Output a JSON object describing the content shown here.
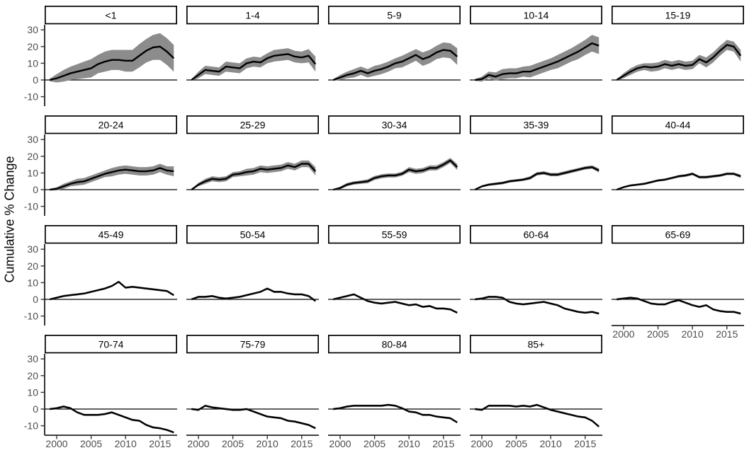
{
  "chart_data": {
    "type": "line",
    "title": "",
    "xlabel": "",
    "ylabel": "Cumulative % Change",
    "x": [
      1999,
      2000,
      2001,
      2002,
      2003,
      2004,
      2005,
      2006,
      2007,
      2008,
      2009,
      2010,
      2011,
      2012,
      2013,
      2014,
      2015,
      2016,
      2017
    ],
    "x_ticks": [
      2000,
      2005,
      2010,
      2015
    ],
    "y_ticks": [
      30,
      20,
      10,
      0,
      -10
    ],
    "ylim": [
      -15.7,
      33
    ],
    "layout": {
      "rows": 4,
      "cols": 5,
      "grid": false,
      "legend": "none",
      "zero_reference_line": true,
      "ribbon": "gray confidence band around each line"
    },
    "colors": {
      "line": "#000000",
      "ribbon": "#8C8C8C",
      "zero_line": "#000000",
      "axis_line": "#000000",
      "tick_mark": "#333333",
      "tick_text": "#4D4D4D",
      "strip_bg": "#FFFFFF",
      "strip_border": "#000000",
      "strip_text": "#000000",
      "background": "#FFFFFF"
    },
    "facets": [
      {
        "label": "<1",
        "values": [
          0,
          1,
          2.5,
          4,
          5,
          6,
          7,
          9.5,
          11,
          12,
          12,
          11.5,
          11.5,
          14.5,
          17.5,
          19.5,
          20,
          17,
          13
        ],
        "ribbon": [
          0.8,
          2.5,
          3.5,
          4,
          4.5,
          5,
          5.5,
          5.5,
          6,
          6,
          6,
          6.5,
          6.5,
          7,
          7,
          7.5,
          8,
          8,
          8
        ]
      },
      {
        "label": "1-4",
        "values": [
          0,
          3,
          6,
          5.5,
          5,
          8,
          7.5,
          7,
          10,
          11,
          10.5,
          13,
          14.5,
          15,
          15.5,
          14,
          13.5,
          14.5,
          9.5
        ],
        "ribbon": [
          0.5,
          2,
          2.5,
          2.5,
          2.5,
          3,
          3,
          3,
          3,
          3,
          3,
          3,
          3.5,
          3.5,
          3.5,
          3.5,
          3.5,
          4,
          4.5
        ]
      },
      {
        "label": "5-9",
        "values": [
          0,
          1.5,
          3,
          4,
          5.5,
          4,
          5.5,
          6.5,
          8,
          10,
          11,
          13,
          15,
          12.5,
          14,
          16.5,
          18,
          17.5,
          14
        ],
        "ribbon": [
          0.5,
          1.5,
          2,
          2.5,
          2.5,
          2.5,
          3,
          3,
          3,
          3,
          3.5,
          3.5,
          3.5,
          4,
          4,
          4,
          4.5,
          4.5,
          5
        ]
      },
      {
        "label": "10-14",
        "values": [
          0,
          0.5,
          3,
          2,
          3.5,
          4,
          4,
          5,
          5,
          6.5,
          8,
          9.5,
          11,
          13,
          15,
          17,
          19.5,
          22,
          20.5
        ],
        "ribbon": [
          0.5,
          1.5,
          2,
          2.5,
          3,
          3,
          3,
          3,
          3.5,
          3.5,
          3.5,
          3.5,
          4,
          4,
          4,
          4.5,
          4.5,
          5,
          5
        ]
      },
      {
        "label": "15-19",
        "values": [
          0,
          2.5,
          5,
          7,
          8,
          7.5,
          8,
          9.5,
          8.5,
          9.5,
          8.5,
          9,
          12.5,
          10.5,
          13.5,
          17.5,
          21,
          20,
          14.5
        ],
        "ribbon": [
          0.5,
          1.5,
          2,
          2,
          2,
          2.5,
          2.5,
          2.5,
          2.5,
          2.5,
          2.5,
          2.5,
          2.5,
          3,
          3,
          3,
          3,
          3,
          3.5
        ]
      },
      {
        "label": "20-24",
        "values": [
          0,
          0.5,
          2,
          3.5,
          4.5,
          5,
          6.5,
          8,
          9.5,
          10.5,
          11.5,
          12,
          11.5,
          11,
          11,
          11.5,
          13,
          11.5,
          11
        ],
        "ribbon": [
          0.5,
          1,
          1.5,
          1.5,
          2,
          2,
          2,
          2,
          2,
          2.5,
          2.5,
          2.5,
          2.5,
          2.5,
          2.5,
          2.5,
          2.5,
          2.5,
          3
        ]
      },
      {
        "label": "25-29",
        "values": [
          0,
          3,
          5,
          6.5,
          6,
          6.5,
          9,
          9.5,
          10.5,
          11,
          12.5,
          12,
          12.5,
          13,
          14.5,
          13.5,
          15.5,
          15.5,
          11
        ],
        "ribbon": [
          0.4,
          1,
          1.5,
          1.5,
          1.5,
          1.5,
          1.5,
          1.5,
          2,
          2,
          2,
          2,
          2,
          2,
          2,
          2,
          2,
          2,
          2.5
        ]
      },
      {
        "label": "30-34",
        "values": [
          0,
          1,
          3,
          4,
          4.5,
          5,
          7,
          8,
          8.5,
          8.5,
          9.5,
          12,
          11,
          11.5,
          13,
          13,
          15,
          17.5,
          13.5
        ],
        "ribbon": [
          0.3,
          0.8,
          1,
          1,
          1,
          1.2,
          1.2,
          1.2,
          1.2,
          1.2,
          1.2,
          1.5,
          1.5,
          1.5,
          1.5,
          1.5,
          1.5,
          1.5,
          1.8
        ]
      },
      {
        "label": "35-39",
        "values": [
          0,
          2,
          3,
          3.5,
          4,
          5,
          5.5,
          6,
          7,
          9.5,
          10,
          9,
          9,
          10,
          11,
          12,
          13,
          13.5,
          11.5
        ],
        "ribbon": [
          0.3,
          0.6,
          0.7,
          0.8,
          0.8,
          0.8,
          0.8,
          0.8,
          1,
          1,
          1,
          1,
          1,
          1,
          1,
          1,
          1,
          1,
          1.2
        ]
      },
      {
        "label": "40-44",
        "values": [
          0,
          1.5,
          2.5,
          3,
          3.5,
          4.5,
          5.5,
          6,
          7,
          8,
          8.5,
          9.5,
          7.5,
          7.5,
          8,
          8.5,
          9.5,
          9.5,
          8
        ],
        "ribbon": [
          0.3,
          0.5,
          0.6,
          0.6,
          0.7,
          0.7,
          0.7,
          0.7,
          0.7,
          0.8,
          0.8,
          0.8,
          0.8,
          0.8,
          0.8,
          0.8,
          0.8,
          0.8,
          1
        ]
      },
      {
        "label": "45-49",
        "values": [
          0,
          1,
          2,
          2.5,
          3,
          3.5,
          4.5,
          5.5,
          6.5,
          8,
          10.5,
          7,
          7.5,
          7,
          6.5,
          6,
          5.5,
          5,
          2.5
        ],
        "ribbon": 0.6
      },
      {
        "label": "50-54",
        "values": [
          0,
          1.5,
          1.5,
          2,
          1,
          0.5,
          1,
          1.5,
          2.5,
          3.5,
          4.5,
          6.5,
          4.5,
          4.5,
          3.5,
          3,
          3,
          2,
          -1
        ],
        "ribbon": 0.6
      },
      {
        "label": "55-59",
        "values": [
          0,
          1,
          2,
          3,
          1,
          -1,
          -2,
          -2.5,
          -2,
          -1.5,
          -2.5,
          -3.5,
          -3,
          -4.5,
          -4,
          -5.5,
          -5.5,
          -6,
          -8
        ],
        "ribbon": 0.6
      },
      {
        "label": "60-64",
        "values": [
          0,
          0.5,
          1.5,
          1.5,
          1,
          -1.5,
          -2.5,
          -3,
          -2.5,
          -2,
          -1.5,
          -2.5,
          -3.5,
          -5.5,
          -6.5,
          -7.5,
          -8,
          -7.5,
          -8.5
        ],
        "ribbon": 0.6
      },
      {
        "label": "65-69",
        "values": [
          0,
          0.5,
          1,
          0.5,
          -1,
          -2.5,
          -3,
          -3,
          -1.5,
          -0.5,
          -2,
          -3.5,
          -4.5,
          -3.5,
          -6,
          -7,
          -7.5,
          -7.5,
          -8.5
        ],
        "ribbon": 0.6
      },
      {
        "label": "70-74",
        "values": [
          0,
          0.5,
          1.5,
          0.5,
          -2,
          -3.5,
          -3.5,
          -3.5,
          -3,
          -2,
          -3.5,
          -5,
          -6.5,
          -7,
          -9.5,
          -11,
          -11.5,
          -12.5,
          -14
        ],
        "ribbon": 0.6
      },
      {
        "label": "75-79",
        "values": [
          0,
          -0.5,
          2,
          1,
          0.5,
          0,
          -0.5,
          -0.5,
          0,
          -1.5,
          -3,
          -4.5,
          -5,
          -5.5,
          -7,
          -7.5,
          -8.5,
          -9.5,
          -11.5
        ],
        "ribbon": 0.6
      },
      {
        "label": "80-84",
        "values": [
          0,
          0.5,
          1.5,
          2,
          2,
          2,
          2,
          2,
          2.5,
          2,
          0.5,
          -1.5,
          -2,
          -3.5,
          -3.5,
          -4.5,
          -5,
          -5.5,
          -8
        ],
        "ribbon": 0.6
      },
      {
        "label": "85+",
        "values": [
          0,
          -0.5,
          2,
          2,
          2,
          2,
          1.5,
          2,
          1.5,
          2.5,
          1,
          -0.5,
          -1.5,
          -2.5,
          -3.5,
          -4.5,
          -5,
          -7,
          -10.5
        ],
        "ribbon": 0.6
      }
    ]
  }
}
